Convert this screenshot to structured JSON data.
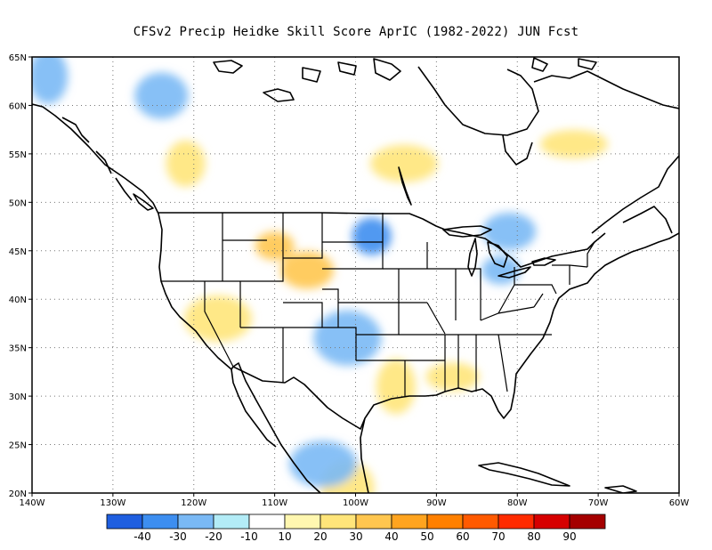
{
  "title": "CFSv2 Precip Heidke Skill Score AprIC (1982-2022) JUN Fcst",
  "map": {
    "lon_range": [
      -140,
      -60
    ],
    "lat_range": [
      20,
      65
    ],
    "lat_ticks": [
      {
        "value": 65,
        "label": "65N"
      },
      {
        "value": 60,
        "label": "60N"
      },
      {
        "value": 55,
        "label": "55N"
      },
      {
        "value": 50,
        "label": "50N"
      },
      {
        "value": 45,
        "label": "45N"
      },
      {
        "value": 40,
        "label": "40N"
      },
      {
        "value": 35,
        "label": "35N"
      },
      {
        "value": 30,
        "label": "30N"
      },
      {
        "value": 25,
        "label": "25N"
      },
      {
        "value": 20,
        "label": "20N"
      }
    ],
    "lon_ticks": [
      {
        "value": -140,
        "label": "140W"
      },
      {
        "value": -130,
        "label": "130W"
      },
      {
        "value": -120,
        "label": "120W"
      },
      {
        "value": -110,
        "label": "110W"
      },
      {
        "value": -100,
        "label": "100W"
      },
      {
        "value": -90,
        "label": "90W"
      },
      {
        "value": -80,
        "label": "80W"
      },
      {
        "value": -70,
        "label": "70W"
      },
      {
        "value": -60,
        "label": "60W"
      }
    ],
    "gridlines": "dotted",
    "skill_regions": [
      {
        "lon": -110,
        "lat": 45.5,
        "hss": 30
      },
      {
        "lon": -106,
        "lat": 43,
        "hss": 30
      },
      {
        "lon": -117,
        "lat": 38,
        "hss": 20
      },
      {
        "lon": -95,
        "lat": 31,
        "hss": 20
      },
      {
        "lon": -88,
        "lat": 32,
        "hss": 20
      },
      {
        "lon": -94,
        "lat": 54,
        "hss": 20
      },
      {
        "lon": -121,
        "lat": 54,
        "hss": 20
      },
      {
        "lon": -101,
        "lat": 20.5,
        "hss": 20
      },
      {
        "lon": -73,
        "lat": 56,
        "hss": 20
      },
      {
        "lon": -98,
        "lat": 46.5,
        "hss": -20
      },
      {
        "lon": -124,
        "lat": 61,
        "hss": -10
      },
      {
        "lon": -101,
        "lat": 36,
        "hss": -10
      },
      {
        "lon": -82,
        "lat": 43,
        "hss": -10
      },
      {
        "lon": -81,
        "lat": 47,
        "hss": -10
      },
      {
        "lon": -104,
        "lat": 23,
        "hss": -10
      },
      {
        "lon": -138,
        "lat": 63,
        "hss": -10
      }
    ]
  },
  "colorbar": {
    "colors": [
      "#1f5fe0",
      "#3d8ef0",
      "#7ab9f5",
      "#b3ecf7",
      "#ffffff",
      "#fff7b0",
      "#ffe57a",
      "#ffc64f",
      "#ffa41f",
      "#ff8000",
      "#ff5a00",
      "#ff2b00",
      "#d60000",
      "#a50000"
    ],
    "labels": [
      "-40",
      "-30",
      "-20",
      "-10",
      "10",
      "20",
      "30",
      "40",
      "50",
      "60",
      "70",
      "80",
      "90"
    ]
  }
}
